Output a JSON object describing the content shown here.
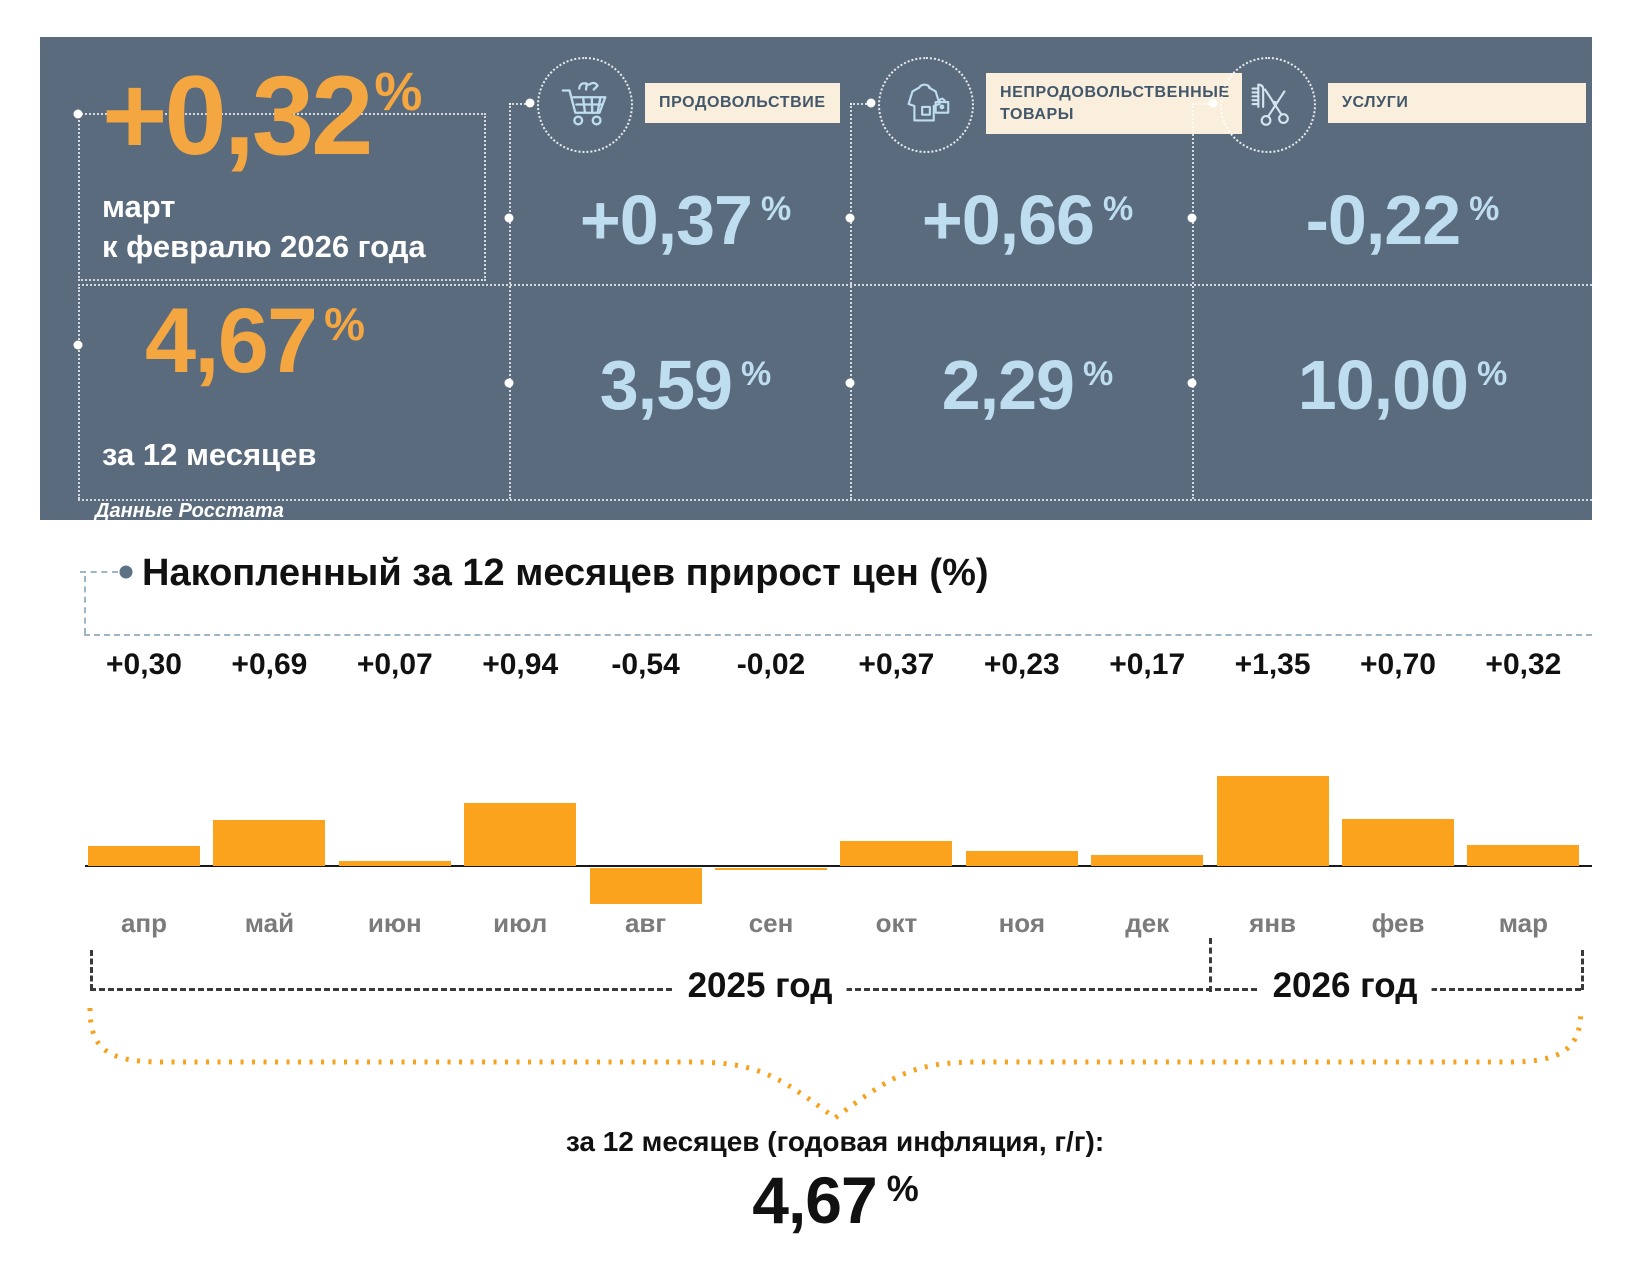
{
  "percent_sign": "%",
  "panel": {
    "headline_value": "+0,32",
    "headline_caption_line1": "март",
    "headline_caption_line2": "к февралю 2026 года",
    "annual_value": "4,67",
    "annual_caption": "за 12 месяцев",
    "source_note": "Данные Росстата"
  },
  "categories": [
    {
      "label": "ПРОДОВОЛЬСТВИЕ",
      "icon": "shopping-cart-icon",
      "monthly_value": "+0,37",
      "annual_value": "3,59"
    },
    {
      "label": "НЕПРОДОВОЛЬСТВЕННЫЕ ТОВАРЫ",
      "icon": "clothing-bag-icon",
      "monthly_value": "+0,66",
      "annual_value": "2,29"
    },
    {
      "label": "УСЛУГИ",
      "icon": "scissors-comb-icon",
      "monthly_value": "-0,22",
      "annual_value": "10,00"
    }
  ],
  "chart_data": {
    "type": "bar",
    "title": "Накопленный за 12 месяцев прирост цен (%)",
    "categories": [
      "апр",
      "май",
      "июн",
      "июл",
      "авг",
      "сен",
      "окт",
      "ноя",
      "дек",
      "янв",
      "фев",
      "мар"
    ],
    "values": [
      0.3,
      0.69,
      0.07,
      0.94,
      -0.54,
      -0.02,
      0.37,
      0.23,
      0.17,
      1.35,
      0.7,
      0.32
    ],
    "value_labels": [
      "+0,30",
      "+0,69",
      "+0,07",
      "+0,94",
      "-0,54",
      "-0,02",
      "+0,37",
      "+0,23",
      "+0,17",
      "+1,35",
      "+0,70",
      "+0,32"
    ],
    "xlabel": "",
    "ylabel": "",
    "ylim": [
      -0.6,
      1.4
    ],
    "grid": false,
    "legend": false,
    "bar_color": "#FBA31C",
    "year_groups": [
      {
        "label": "2025 год",
        "months": [
          "апр",
          "май",
          "июн",
          "июл",
          "авг",
          "сен",
          "окт",
          "ноя",
          "дек"
        ]
      },
      {
        "label": "2026 год",
        "months": [
          "янв",
          "фев",
          "мар"
        ]
      }
    ],
    "footer": {
      "annual_label": "за 12 месяцев (годовая инфляция, г/г):",
      "annual_value": "4,67"
    }
  },
  "colors": {
    "panel_bg": "#5A6B7E",
    "accent_orange": "#F4A640",
    "bar_orange": "#FBA31C",
    "value_blue": "#BEDDEF",
    "label_box_bg": "#FAEEDC",
    "label_box_text": "#43576B"
  }
}
